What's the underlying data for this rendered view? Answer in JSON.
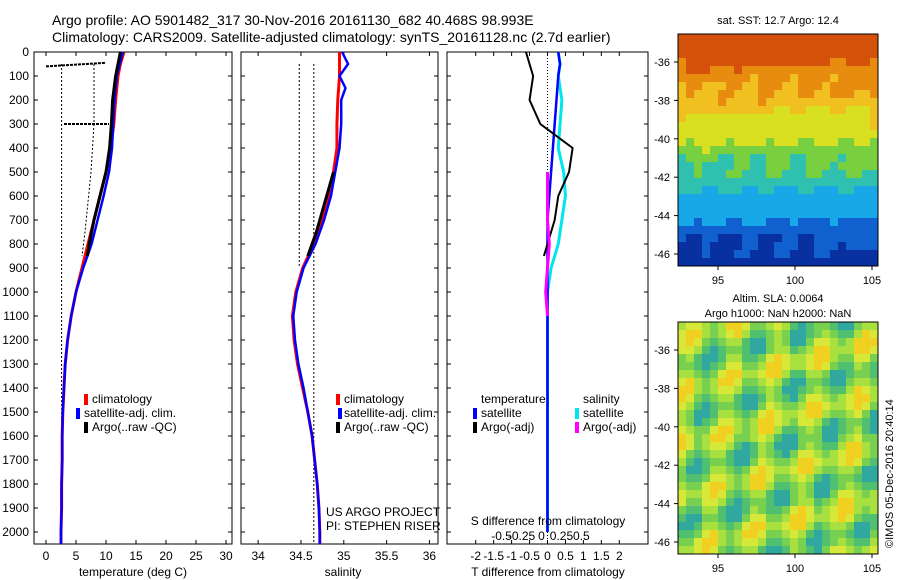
{
  "header": {
    "line1": "Argo profile: AO 5901482_317 30-Nov-2016 20161130_682 40.468S 98.993E",
    "line2": "Climatology: CARS2009. Satellite-adjusted climatology: synTS_20161128.nc (2.7d earlier)"
  },
  "colors": {
    "climatology": "#ff0000",
    "satellite_adj": "#0000ff",
    "argo": "#000000",
    "sat_temp": "#00e5ee",
    "argo_sal_adj": "#ff00ff"
  },
  "depth_axis": {
    "ticks": [
      0,
      100,
      200,
      300,
      400,
      500,
      600,
      700,
      800,
      900,
      1000,
      1100,
      1200,
      1300,
      1400,
      1500,
      1600,
      1700,
      1800,
      1900,
      2000
    ],
    "range": [
      0,
      2050
    ]
  },
  "panels": {
    "temperature": {
      "xlabel": "temperature (deg C)",
      "xticks": [
        "0",
        "5",
        "10",
        "15",
        "20",
        "25",
        "30"
      ],
      "legend": [
        "climatology",
        "satellite-adj. clim.",
        "Argo(..raw -QC)"
      ]
    },
    "salinity": {
      "xlabel": "salinity",
      "xticks": [
        "34",
        "34.5",
        "35",
        "35.5",
        "36"
      ],
      "legend": [
        "climatology",
        "satellite-adj. clim.",
        "Argo(..raw -QC)"
      ],
      "credit1": "US ARGO PROJECT",
      "credit2": "PI: STEPHEN RISER"
    },
    "difference": {
      "xlabel": "T difference from climatology",
      "top_xlabel": "S difference from climatology",
      "xticks": [
        "-2",
        "-1.5",
        "-1",
        "-0.5",
        "0",
        "0.5",
        "1",
        "1.5",
        "2"
      ],
      "top_xticks": [
        "-0.5",
        "-0.25",
        "0",
        "0.25",
        "0.5"
      ],
      "legend_temp_title": "temperature",
      "legend_sal_title": "salinity",
      "legend_temp": [
        "satellite",
        "Argo(-adj)"
      ],
      "legend_sal": [
        "satellite",
        "Argo(-adj)"
      ]
    }
  },
  "maps": {
    "sst_title": "sat. SST: 12.7  Argo: 12.4",
    "sla_title1": "Altim. SLA: 0.0064",
    "sla_title2": "Argo h1000: NaN h2000: NaN",
    "yticks": [
      "-36",
      "-38",
      "-40",
      "-42",
      "-44",
      "-46"
    ],
    "xticks": [
      "95",
      "100",
      "105"
    ],
    "credit": "©IMOS 05-Dec-2016 20:40:14"
  },
  "chart_data": [
    {
      "type": "line",
      "name": "temperature",
      "y_axis": "depth",
      "xlim": [
        -2,
        31
      ],
      "ylim": [
        2050,
        0
      ],
      "series": [
        {
          "name": "climatology",
          "depth": [
            0,
            50,
            100,
            200,
            300,
            400,
            500,
            600,
            700,
            800,
            900,
            1000,
            1100,
            1200,
            1300,
            1400,
            1500,
            1600,
            1700,
            1800,
            1900,
            2000,
            2050
          ],
          "values": [
            13.0,
            12.4,
            12.0,
            11.6,
            11.3,
            10.8,
            10.0,
            9.0,
            8.0,
            7.0,
            6.0,
            5.0,
            4.2,
            3.6,
            3.2,
            3.0,
            2.8,
            2.7,
            2.7,
            2.6,
            2.6,
            2.5,
            2.5
          ]
        },
        {
          "name": "satellite-adj. clim.",
          "depth": [
            0,
            50,
            100,
            200,
            300,
            400,
            500,
            600,
            700,
            800,
            900,
            1000,
            1100,
            1200,
            1300,
            1400,
            1500,
            1600,
            1700,
            1800,
            1900,
            2000,
            2050
          ],
          "values": [
            12.8,
            12.3,
            11.8,
            11.4,
            11.2,
            11.0,
            10.5,
            9.6,
            8.6,
            7.6,
            6.2,
            5.0,
            4.2,
            3.6,
            3.2,
            3.0,
            2.8,
            2.7,
            2.7,
            2.6,
            2.6,
            2.5,
            2.5
          ]
        },
        {
          "name": "Argo(..raw -QC)",
          "depth": [
            0,
            50,
            100,
            200,
            300,
            400,
            500,
            600,
            700,
            750,
            800,
            850
          ],
          "values": [
            12.4,
            12.0,
            11.6,
            11.1,
            10.9,
            10.6,
            10.0,
            9.0,
            8.0,
            7.6,
            7.2,
            6.9
          ]
        }
      ]
    },
    {
      "type": "line",
      "name": "salinity",
      "y_axis": "depth",
      "xlim": [
        33.8,
        36.1
      ],
      "ylim": [
        2050,
        0
      ],
      "series": [
        {
          "name": "climatology",
          "depth": [
            0,
            100,
            200,
            300,
            400,
            500,
            600,
            700,
            800,
            900,
            1000,
            1100,
            1200,
            1300,
            1400,
            1500,
            1600,
            1700,
            1800,
            1900,
            2000,
            2050
          ],
          "values": [
            34.95,
            34.95,
            34.93,
            34.92,
            34.92,
            34.88,
            34.83,
            34.75,
            34.65,
            34.52,
            34.44,
            34.4,
            34.42,
            34.46,
            34.52,
            34.58,
            34.63,
            34.66,
            34.69,
            34.71,
            34.72,
            34.72
          ]
        },
        {
          "name": "satellite-adj. clim.",
          "depth": [
            0,
            50,
            100,
            150,
            200,
            300,
            400,
            500,
            600,
            700,
            800,
            900,
            1000,
            1100,
            1200,
            1300,
            1400,
            1500,
            1600,
            1700,
            1800,
            1900,
            2000,
            2050
          ],
          "values": [
            34.98,
            35.05,
            34.95,
            35.02,
            34.97,
            34.97,
            34.95,
            34.9,
            34.85,
            34.77,
            34.67,
            34.53,
            34.45,
            34.41,
            34.43,
            34.47,
            34.53,
            34.58,
            34.63,
            34.66,
            34.69,
            34.71,
            34.72,
            34.72
          ]
        },
        {
          "name": "Argo(..raw -QC)",
          "depth": [
            500,
            550,
            600,
            650,
            700,
            750,
            800,
            850
          ],
          "values": [
            34.88,
            34.84,
            34.8,
            34.76,
            34.72,
            34.68,
            34.63,
            34.58
          ]
        }
      ]
    },
    {
      "type": "line",
      "name": "difference",
      "y_axis": "depth",
      "xlim": [
        -2.8,
        2.8
      ],
      "ylim": [
        2050,
        0
      ],
      "series": [
        {
          "name": "temperature satellite",
          "depth": [
            0,
            50,
            100,
            200,
            300,
            400,
            500,
            600,
            700,
            800,
            900,
            1000,
            1100,
            1200,
            1300,
            1400,
            1500,
            1600,
            1700,
            1800,
            1900,
            2000
          ],
          "values": [
            0.3,
            0.35,
            0.3,
            0.25,
            0.2,
            0.15,
            0.1,
            0.05,
            0.0,
            0.0,
            0.0,
            0.0,
            0.0,
            0.0,
            0.0,
            0.0,
            0.0,
            0.0,
            0.0,
            0.0,
            0.0,
            0.0
          ]
        },
        {
          "name": "salinity satellite",
          "depth": [
            0,
            50,
            100,
            200,
            300,
            400,
            500,
            600,
            700,
            800,
            900,
            1000,
            1100,
            1200,
            1300,
            1400,
            1500,
            1600,
            1700,
            1800,
            1900,
            2000
          ],
          "values": [
            0.3,
            0.35,
            0.3,
            0.4,
            0.35,
            0.3,
            0.45,
            0.5,
            0.4,
            0.3,
            0.1,
            0.0,
            0.0,
            0.0,
            0.0,
            0.0,
            0.0,
            0.0,
            0.0,
            0.0,
            0.0,
            0.0
          ]
        },
        {
          "name": "temperature Argo(-adj)",
          "depth": [
            0,
            100,
            200,
            300,
            400,
            500,
            600,
            700,
            800,
            850
          ],
          "values": [
            -0.6,
            -0.4,
            -0.5,
            -0.2,
            0.7,
            0.6,
            0.3,
            0.2,
            0.0,
            -0.1
          ]
        },
        {
          "name": "salinity Argo(-adj)",
          "depth": [
            500,
            600,
            700,
            800,
            900,
            1000,
            1100
          ],
          "values": [
            0.0,
            0.0,
            0.0,
            0.05,
            0.0,
            -0.05,
            0.0
          ]
        }
      ]
    }
  ]
}
